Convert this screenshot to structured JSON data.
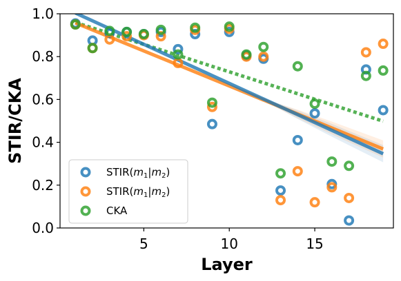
{
  "chart_data": {
    "type": "scatter",
    "xlabel": "Layer",
    "ylabel": "STIR/CKA",
    "xlim": [
      0.1,
      19.6
    ],
    "ylim": [
      0.0,
      1.0
    ],
    "xticks": [
      5,
      10,
      15
    ],
    "yticks": [
      0.0,
      0.2,
      0.4,
      0.6,
      0.8,
      1.0
    ],
    "grid": false,
    "legend_position": "bottom-left",
    "series": [
      {
        "name": "STIR(m1|m2)",
        "legend_main": "STIR(",
        "legend_m_a": "m",
        "legend_sub_a": "1",
        "legend_sep": "|",
        "legend_m_b": "m",
        "legend_sub_b": "2",
        "legend_close": ")",
        "color": "#1f77b4",
        "x": [
          1,
          2,
          3,
          4,
          5,
          6,
          7,
          8,
          9,
          10,
          11,
          12,
          13,
          14,
          15,
          16,
          17,
          18,
          19
        ],
        "y": [
          0.955,
          0.875,
          0.91,
          0.915,
          0.905,
          0.915,
          0.835,
          0.905,
          0.485,
          0.915,
          0.805,
          0.79,
          0.175,
          0.41,
          0.535,
          0.205,
          0.035,
          0.74,
          0.55
        ],
        "trend": {
          "style": "solid",
          "slope": -0.0365,
          "intercept": 1.04
        }
      },
      {
        "name": "STIR(m1|m2)",
        "legend_main": "STIR(",
        "legend_m_a": "m",
        "legend_sub_a": "1",
        "legend_sep": "|",
        "legend_m_b": "m",
        "legend_sub_b": "2",
        "legend_close": ")",
        "color": "#ff7f0e",
        "x": [
          1,
          2,
          3,
          4,
          5,
          6,
          7,
          8,
          9,
          10,
          11,
          12,
          13,
          14,
          15,
          16,
          17,
          18,
          19
        ],
        "y": [
          0.95,
          0.84,
          0.88,
          0.895,
          0.9,
          0.895,
          0.77,
          0.925,
          0.565,
          0.93,
          0.8,
          0.8,
          0.13,
          0.265,
          0.12,
          0.19,
          0.14,
          0.82,
          0.86
        ],
        "trend": {
          "style": "solid",
          "slope": -0.0327,
          "intercept": 0.99
        }
      },
      {
        "name": "CKA",
        "legend_main": "CKA",
        "color": "#2ca02c",
        "x": [
          1,
          2,
          3,
          4,
          5,
          6,
          7,
          8,
          9,
          10,
          11,
          12,
          13,
          14,
          15,
          16,
          17,
          18,
          19
        ],
        "y": [
          0.95,
          0.84,
          0.92,
          0.915,
          0.905,
          0.925,
          0.81,
          0.935,
          0.585,
          0.94,
          0.81,
          0.845,
          0.255,
          0.755,
          0.58,
          0.31,
          0.29,
          0.71,
          0.735
        ],
        "trend": {
          "style": "dotted",
          "slope": -0.0256,
          "intercept": 0.985
        }
      }
    ]
  }
}
